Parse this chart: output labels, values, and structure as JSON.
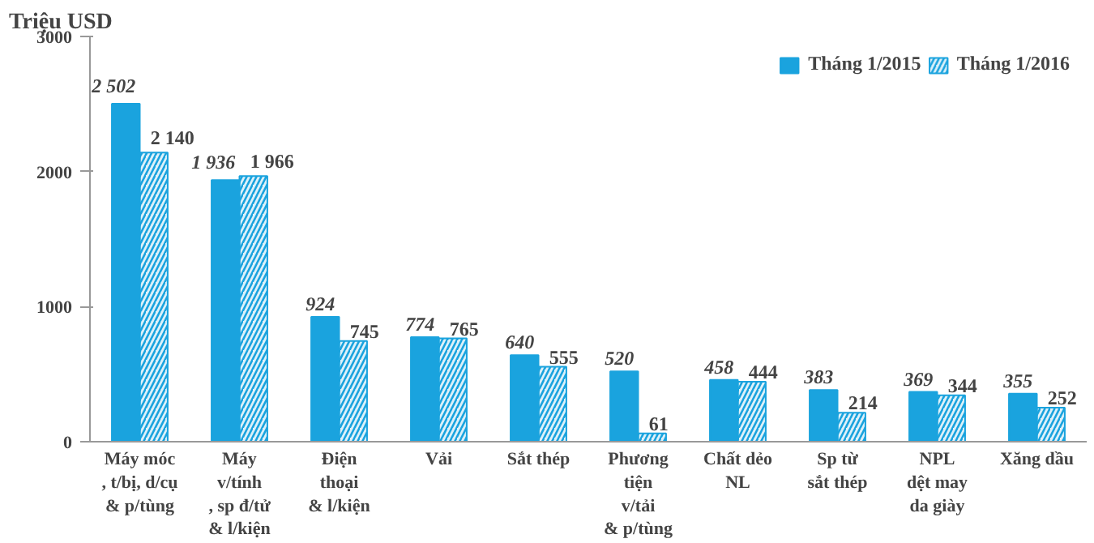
{
  "chart_data": {
    "type": "bar",
    "ylabel": "Triệu USD",
    "categories": [
      "Máy móc\n, t/bị, d/cụ\n& p/tùng",
      "Máy\nv/tính\n, sp đ/tử\n& l/kiện",
      "Điện\nthoại\n& l/kiện",
      "Vải",
      "Sắt thép",
      "Phương\ntiện\nv/tải\n& p/tùng",
      "Chất dẻo\nNL",
      "Sp từ\nsắt thép",
      "NPL\ndệt may\nda giày",
      "Xăng dầu"
    ],
    "series": [
      {
        "name": "Tháng 1/2015",
        "color": "#1aa3de",
        "values": [
          2502,
          1936,
          924,
          774,
          640,
          520,
          458,
          383,
          369,
          355
        ],
        "value_labels": [
          "2 502",
          "1 936",
          "924",
          "774",
          "640",
          "520",
          "458",
          "383",
          "369",
          "355"
        ]
      },
      {
        "name": "Tháng 1/2016",
        "color": "#1aa3de",
        "values": [
          2140,
          1966,
          745,
          765,
          555,
          61,
          444,
          214,
          344,
          252
        ],
        "value_labels": [
          "2 140",
          "1 966",
          "745",
          "765",
          "555",
          "61",
          "444",
          "214",
          "344",
          "252"
        ]
      }
    ],
    "ylim": [
      0,
      3000
    ],
    "yticks": [
      0,
      1000,
      2000,
      3000
    ],
    "grid": false,
    "legend": "top right"
  }
}
